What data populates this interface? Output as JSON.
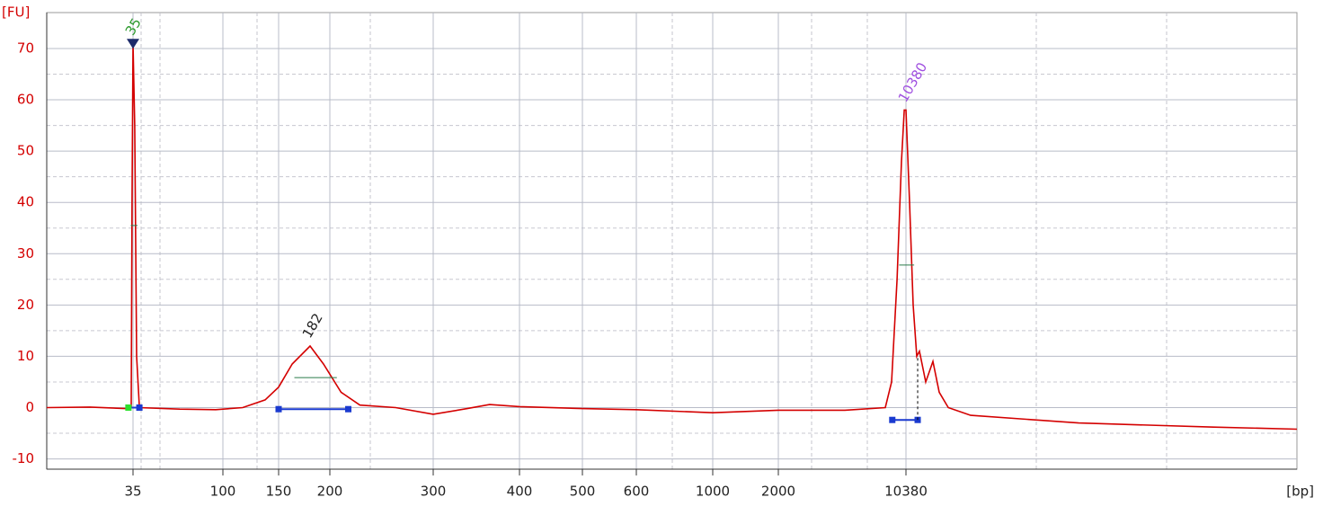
{
  "chart_data": {
    "type": "line",
    "y_label": "[FU]",
    "x_label": "[bp]",
    "color": "#d40000",
    "xscale": "ladder-log",
    "xlim": [
      13,
      1600000
    ],
    "xticks": [
      35,
      100,
      150,
      200,
      300,
      400,
      500,
      600,
      1000,
      2000,
      10380
    ],
    "ylim": [
      -12,
      77
    ],
    "yticks": [
      -10,
      0,
      10,
      20,
      30,
      40,
      50,
      60,
      70
    ],
    "grid": true,
    "x": [
      13,
      21.3,
      32.2,
      34.3,
      34.6,
      35,
      35.7,
      36.5,
      37.7,
      60.4,
      91.9,
      115.5,
      136,
      150,
      161.9,
      179,
      193,
      209,
      225,
      259,
      300,
      336,
      362,
      400,
      500,
      600,
      1000,
      2000,
      4716,
      7950,
      8620,
      9254,
      9800,
      10150,
      10380,
      10870,
      11390,
      11930,
      12350,
      13390,
      14700,
      15940,
      17900,
      23900,
      96000,
      546000,
      1600000
    ],
    "values": [
      0,
      0.1,
      -0.2,
      0,
      40,
      71,
      55,
      10,
      0,
      -0.3,
      -0.4,
      0,
      1.5,
      4,
      8.5,
      12,
      8.5,
      3,
      0.5,
      0,
      -1.3,
      -0.2,
      0.6,
      0.2,
      -0.2,
      -0.4,
      -1,
      -0.5,
      -0.5,
      0,
      5,
      25,
      48,
      58,
      58,
      40,
      20,
      10,
      11,
      5,
      9,
      3,
      0,
      -1.5,
      -3,
      -3.8,
      -4.2
    ],
    "peaks": [
      {
        "label": "35",
        "x": 35,
        "y": 71,
        "color": "#2e9b2e",
        "from": 33.2,
        "to": 37.7,
        "base": 0
      },
      {
        "label": "182",
        "x": 179,
        "y": 12,
        "color": "#222222",
        "from": 150,
        "to": 215,
        "base": -0.3
      },
      {
        "label": "10380",
        "x": 10380,
        "y": 58,
        "color": "#a050e0",
        "from": 8700,
        "to": 12070,
        "base": -2.4
      }
    ]
  }
}
